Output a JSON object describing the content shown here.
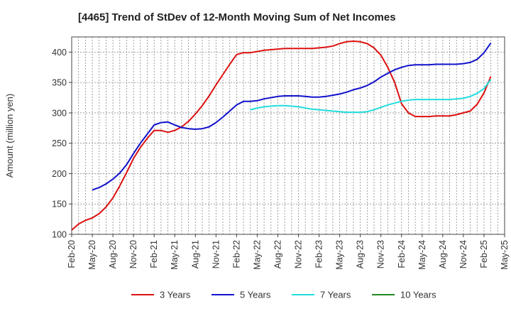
{
  "chart_data": {
    "type": "line",
    "title": "[4465]  Trend of StDev of 12-Month Moving Sum of Net Incomes",
    "xlabel": "",
    "ylabel": "Amount (million yen)",
    "ylim": [
      100,
      425
    ],
    "yticks": [
      100,
      150,
      200,
      250,
      300,
      350,
      400
    ],
    "xlim": [
      "2020-02",
      "2025-05"
    ],
    "xticks": [
      "Feb-20",
      "May-20",
      "Aug-20",
      "Nov-20",
      "Feb-21",
      "May-21",
      "Aug-21",
      "Nov-21",
      "Feb-22",
      "May-22",
      "Aug-22",
      "Nov-22",
      "Feb-23",
      "May-23",
      "Aug-23",
      "Nov-23",
      "Feb-24",
      "May-24",
      "Aug-24",
      "Nov-24",
      "Feb-25",
      "May-25"
    ],
    "grid": true,
    "legend_position": "bottom",
    "series": [
      {
        "name": "3 Years",
        "color": "#dd1111",
        "points": [
          [
            "2020-02",
            107
          ],
          [
            "2020-03",
            117
          ],
          [
            "2020-04",
            123
          ],
          [
            "2020-05",
            127
          ],
          [
            "2020-06",
            134
          ],
          [
            "2020-07",
            145
          ],
          [
            "2020-08",
            160
          ],
          [
            "2020-09",
            180
          ],
          [
            "2020-10",
            202
          ],
          [
            "2020-11",
            225
          ],
          [
            "2020-12",
            243
          ],
          [
            "2021-01",
            258
          ],
          [
            "2021-02",
            271
          ],
          [
            "2021-03",
            271
          ],
          [
            "2021-04",
            268
          ],
          [
            "2021-05",
            271
          ],
          [
            "2021-06",
            277
          ],
          [
            "2021-07",
            286
          ],
          [
            "2021-08",
            298
          ],
          [
            "2021-09",
            312
          ],
          [
            "2021-10",
            328
          ],
          [
            "2021-11",
            346
          ],
          [
            "2021-12",
            363
          ],
          [
            "2022-01",
            380
          ],
          [
            "2022-02",
            396
          ],
          [
            "2022-03",
            399
          ],
          [
            "2022-04",
            399
          ],
          [
            "2022-05",
            401
          ],
          [
            "2022-06",
            403
          ],
          [
            "2022-07",
            404
          ],
          [
            "2022-08",
            405
          ],
          [
            "2022-09",
            406
          ],
          [
            "2022-10",
            406
          ],
          [
            "2022-11",
            406
          ],
          [
            "2022-12",
            406
          ],
          [
            "2023-01",
            406
          ],
          [
            "2023-02",
            407
          ],
          [
            "2023-03",
            408
          ],
          [
            "2023-04",
            410
          ],
          [
            "2023-05",
            414
          ],
          [
            "2023-06",
            417
          ],
          [
            "2023-07",
            418
          ],
          [
            "2023-08",
            417
          ],
          [
            "2023-09",
            414
          ],
          [
            "2023-10",
            407
          ],
          [
            "2023-11",
            395
          ],
          [
            "2023-12",
            375
          ],
          [
            "2024-01",
            350
          ],
          [
            "2024-02",
            315
          ],
          [
            "2024-03",
            300
          ],
          [
            "2024-04",
            294
          ],
          [
            "2024-05",
            294
          ],
          [
            "2024-06",
            294
          ],
          [
            "2024-07",
            295
          ],
          [
            "2024-08",
            295
          ],
          [
            "2024-09",
            295
          ],
          [
            "2024-10",
            297
          ],
          [
            "2024-11",
            300
          ],
          [
            "2024-12",
            303
          ],
          [
            "2025-01",
            314
          ],
          [
            "2025-02",
            333
          ],
          [
            "2025-03",
            360
          ]
        ]
      },
      {
        "name": "5 Years",
        "color": "#1111cc",
        "points": [
          [
            "2020-05",
            173
          ],
          [
            "2020-06",
            177
          ],
          [
            "2020-07",
            183
          ],
          [
            "2020-08",
            191
          ],
          [
            "2020-09",
            201
          ],
          [
            "2020-10",
            215
          ],
          [
            "2020-11",
            233
          ],
          [
            "2020-12",
            250
          ],
          [
            "2021-01",
            265
          ],
          [
            "2021-02",
            280
          ],
          [
            "2021-03",
            284
          ],
          [
            "2021-04",
            285
          ],
          [
            "2021-05",
            280
          ],
          [
            "2021-06",
            276
          ],
          [
            "2021-07",
            274
          ],
          [
            "2021-08",
            273
          ],
          [
            "2021-09",
            274
          ],
          [
            "2021-10",
            277
          ],
          [
            "2021-11",
            284
          ],
          [
            "2021-12",
            293
          ],
          [
            "2022-01",
            303
          ],
          [
            "2022-02",
            313
          ],
          [
            "2022-03",
            319
          ],
          [
            "2022-04",
            319
          ],
          [
            "2022-05",
            320
          ],
          [
            "2022-06",
            323
          ],
          [
            "2022-07",
            325
          ],
          [
            "2022-08",
            327
          ],
          [
            "2022-09",
            328
          ],
          [
            "2022-10",
            328
          ],
          [
            "2022-11",
            328
          ],
          [
            "2022-12",
            327
          ],
          [
            "2023-01",
            326
          ],
          [
            "2023-02",
            326
          ],
          [
            "2023-03",
            327
          ],
          [
            "2023-04",
            329
          ],
          [
            "2023-05",
            331
          ],
          [
            "2023-06",
            334
          ],
          [
            "2023-07",
            338
          ],
          [
            "2023-08",
            341
          ],
          [
            "2023-09",
            345
          ],
          [
            "2023-10",
            351
          ],
          [
            "2023-11",
            359
          ],
          [
            "2023-12",
            365
          ],
          [
            "2024-01",
            371
          ],
          [
            "2024-02",
            375
          ],
          [
            "2024-03",
            378
          ],
          [
            "2024-04",
            379
          ],
          [
            "2024-05",
            379
          ],
          [
            "2024-06",
            379
          ],
          [
            "2024-07",
            380
          ],
          [
            "2024-08",
            380
          ],
          [
            "2024-09",
            380
          ],
          [
            "2024-10",
            380
          ],
          [
            "2024-11",
            381
          ],
          [
            "2024-12",
            383
          ],
          [
            "2025-01",
            388
          ],
          [
            "2025-02",
            399
          ],
          [
            "2025-03",
            415
          ]
        ]
      },
      {
        "name": "7 Years",
        "color": "#22dddd",
        "points": [
          [
            "2022-04",
            305
          ],
          [
            "2022-05",
            308
          ],
          [
            "2022-06",
            310
          ],
          [
            "2022-07",
            311
          ],
          [
            "2022-08",
            312
          ],
          [
            "2022-09",
            312
          ],
          [
            "2022-10",
            311
          ],
          [
            "2022-11",
            310
          ],
          [
            "2022-12",
            308
          ],
          [
            "2023-01",
            306
          ],
          [
            "2023-02",
            305
          ],
          [
            "2023-03",
            304
          ],
          [
            "2023-04",
            303
          ],
          [
            "2023-05",
            302
          ],
          [
            "2023-06",
            301
          ],
          [
            "2023-07",
            301
          ],
          [
            "2023-08",
            301
          ],
          [
            "2023-09",
            302
          ],
          [
            "2023-10",
            305
          ],
          [
            "2023-11",
            309
          ],
          [
            "2023-12",
            313
          ],
          [
            "2024-01",
            316
          ],
          [
            "2024-02",
            319
          ],
          [
            "2024-03",
            321
          ],
          [
            "2024-04",
            322
          ],
          [
            "2024-05",
            322
          ],
          [
            "2024-06",
            322
          ],
          [
            "2024-07",
            322
          ],
          [
            "2024-08",
            322
          ],
          [
            "2024-09",
            322
          ],
          [
            "2024-10",
            323
          ],
          [
            "2024-11",
            324
          ],
          [
            "2024-12",
            327
          ],
          [
            "2025-01",
            332
          ],
          [
            "2025-02",
            340
          ],
          [
            "2025-03",
            355
          ]
        ]
      },
      {
        "name": "10 Years",
        "color": "#228822",
        "points": []
      }
    ]
  }
}
